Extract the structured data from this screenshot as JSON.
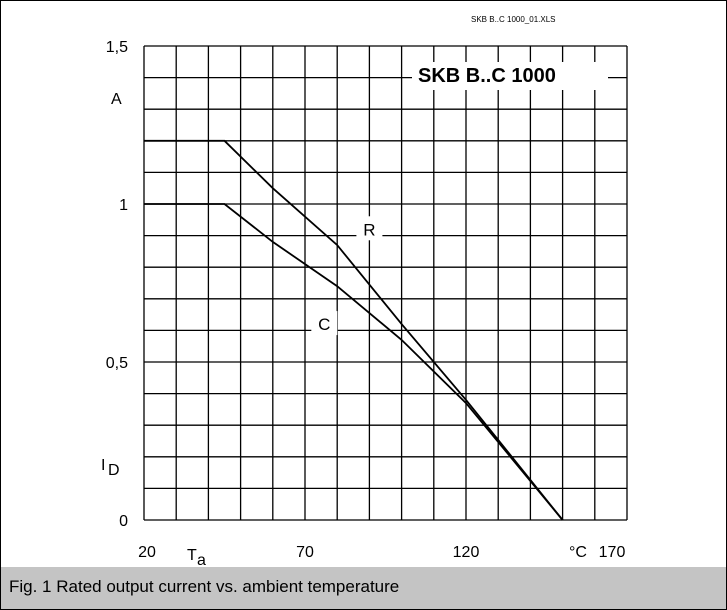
{
  "file_ref": "SKB B..C 1000_01.XLS",
  "caption": "Fig. 1 Rated output current vs. ambient temperature",
  "chart_data": {
    "type": "line",
    "title": "SKB B..C 1000",
    "xlabel_symbol": "T",
    "xlabel_subscript": "a",
    "xunit": "°C",
    "ylabel_symbol": "I",
    "ylabel_subscript": "D",
    "yunit": "A",
    "xlim": [
      20,
      170
    ],
    "ylim": [
      0,
      1.5
    ],
    "grid": true,
    "x_ticks": [
      {
        "value": 20,
        "label": "20"
      },
      {
        "value": 70,
        "label": "70"
      },
      {
        "value": 120,
        "label": "120"
      },
      {
        "value": 170,
        "label": "170"
      }
    ],
    "y_ticks": [
      {
        "value": 0,
        "label": "0"
      },
      {
        "value": 0.5,
        "label": "0,5"
      },
      {
        "value": 1,
        "label": "1"
      },
      {
        "value": 1.5,
        "label": "1,5"
      }
    ],
    "series": [
      {
        "name": "R",
        "label_at": [
          90,
          0.92
        ],
        "x": [
          20,
          45,
          60,
          80,
          100,
          120,
          150
        ],
        "y": [
          1.2,
          1.2,
          1.05,
          0.87,
          0.62,
          0.38,
          0
        ]
      },
      {
        "name": "C",
        "label_at": [
          76,
          0.62
        ],
        "x": [
          20,
          45,
          60,
          80,
          100,
          120,
          150
        ],
        "y": [
          1.0,
          1.0,
          0.88,
          0.74,
          0.57,
          0.37,
          0
        ]
      }
    ]
  }
}
